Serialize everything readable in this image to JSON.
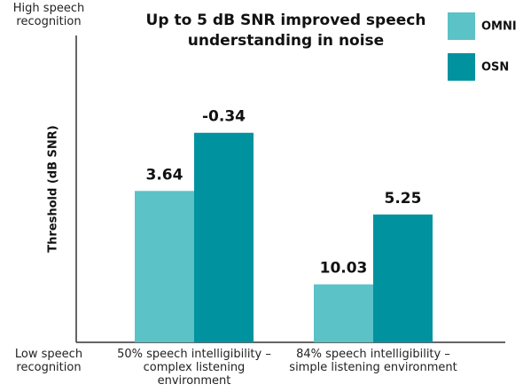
{
  "chart_data": {
    "type": "bar",
    "title": "Up to 5 dB SNR improved speech understanding in noise",
    "y_label": "Threshold (dB SNR)",
    "y_top_label": "High speech recognition",
    "y_bottom_label": "Low speech recognition",
    "categories": [
      "50% speech intelligibility – complex listening environment",
      "84% speech intelligibility – simple listening environment"
    ],
    "series": [
      {
        "name": "OMNI",
        "color": "#5bc2c7",
        "values": [
          3.64,
          10.03
        ]
      },
      {
        "name": "OSN",
        "color": "#00939f",
        "values": [
          -0.34,
          5.25
        ]
      }
    ],
    "ylim": [
      14,
      -7
    ],
    "legend": "top-right"
  }
}
